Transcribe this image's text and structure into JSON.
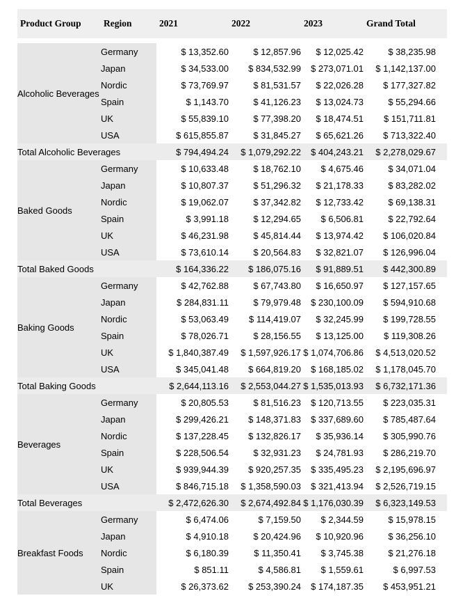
{
  "colors": {
    "page_bg": "#ffffff",
    "header_bg": "#efefef",
    "row_label_bg": "#e6e6e6",
    "total_row_bg": "#ececec",
    "text": "#000000"
  },
  "table": {
    "columns": [
      "Product Group",
      "Region",
      "2021",
      "2022",
      "2023",
      "Grand Total"
    ],
    "groups": [
      {
        "name": "Alcoholic Beverages",
        "rows": [
          {
            "region": "Germany",
            "values": [
              "$ 13,352.60",
              "$ 12,857.96",
              "$ 12,025.42",
              "$ 38,235.98"
            ]
          },
          {
            "region": "Japan",
            "values": [
              "$ 34,533.00",
              "$ 834,532.99",
              "$ 273,071.01",
              "$ 1,142,137.00"
            ]
          },
          {
            "region": "Nordic",
            "values": [
              "$ 73,769.97",
              "$ 81,531.57",
              "$ 22,026.28",
              "$ 177,327.82"
            ]
          },
          {
            "region": "Spain",
            "values": [
              "$ 1,143.70",
              "$ 41,126.23",
              "$ 13,024.73",
              "$ 55,294.66"
            ]
          },
          {
            "region": "UK",
            "values": [
              "$ 55,839.10",
              "$ 77,398.20",
              "$ 18,474.51",
              "$ 151,711.81"
            ]
          },
          {
            "region": "USA",
            "values": [
              "$ 615,855.87",
              "$ 31,845.27",
              "$ 65,621.26",
              "$ 713,322.40"
            ]
          }
        ],
        "total": {
          "label": "Total Alcoholic Beverages",
          "values": [
            "$ 794,494.24",
            "$ 1,079,292.22",
            "$ 404,243.21",
            "$ 2,278,029.67"
          ]
        }
      },
      {
        "name": "Baked Goods",
        "rows": [
          {
            "region": "Germany",
            "values": [
              "$ 10,633.48",
              "$ 18,762.10",
              "$ 4,675.46",
              "$ 34,071.04"
            ]
          },
          {
            "region": "Japan",
            "values": [
              "$ 10,807.37",
              "$ 51,296.32",
              "$ 21,178.33",
              "$ 83,282.02"
            ]
          },
          {
            "region": "Nordic",
            "values": [
              "$ 19,062.07",
              "$ 37,342.82",
              "$ 12,733.42",
              "$ 69,138.31"
            ]
          },
          {
            "region": "Spain",
            "values": [
              "$ 3,991.18",
              "$ 12,294.65",
              "$ 6,506.81",
              "$ 22,792.64"
            ]
          },
          {
            "region": "UK",
            "values": [
              "$ 46,231.98",
              "$ 45,814.44",
              "$ 13,974.42",
              "$ 106,020.84"
            ]
          },
          {
            "region": "USA",
            "values": [
              "$ 73,610.14",
              "$ 20,564.83",
              "$ 32,821.07",
              "$ 126,996.04"
            ]
          }
        ],
        "total": {
          "label": "Total Baked Goods",
          "values": [
            "$ 164,336.22",
            "$ 186,075.16",
            "$ 91,889.51",
            "$ 442,300.89"
          ]
        }
      },
      {
        "name": "Baking Goods",
        "rows": [
          {
            "region": "Germany",
            "values": [
              "$ 42,762.88",
              "$ 67,743.80",
              "$ 16,650.97",
              "$ 127,157.65"
            ]
          },
          {
            "region": "Japan",
            "values": [
              "$ 284,831.11",
              "$ 79,979.48",
              "$ 230,100.09",
              "$ 594,910.68"
            ]
          },
          {
            "region": "Nordic",
            "values": [
              "$ 53,063.49",
              "$ 114,419.07",
              "$ 32,245.99",
              "$ 199,728.55"
            ]
          },
          {
            "region": "Spain",
            "values": [
              "$ 78,026.71",
              "$ 28,156.55",
              "$ 13,125.00",
              "$ 119,308.26"
            ]
          },
          {
            "region": "UK",
            "values": [
              "$ 1,840,387.49",
              "$ 1,597,926.17",
              "$ 1,074,706.86",
              "$ 4,513,020.52"
            ]
          },
          {
            "region": "USA",
            "values": [
              "$ 345,041.48",
              "$ 664,819.20",
              "$ 168,185.02",
              "$ 1,178,045.70"
            ]
          }
        ],
        "total": {
          "label": "Total Baking Goods",
          "values": [
            "$ 2,644,113.16",
            "$ 2,553,044.27",
            "$ 1,535,013.93",
            "$ 6,732,171.36"
          ]
        }
      },
      {
        "name": "Beverages",
        "rows": [
          {
            "region": "Germany",
            "values": [
              "$ 20,805.53",
              "$ 81,516.23",
              "$ 120,713.55",
              "$ 223,035.31"
            ]
          },
          {
            "region": "Japan",
            "values": [
              "$ 299,426.21",
              "$ 148,371.83",
              "$ 337,689.60",
              "$ 785,487.64"
            ]
          },
          {
            "region": "Nordic",
            "values": [
              "$ 137,228.45",
              "$ 132,826.17",
              "$ 35,936.14",
              "$ 305,990.76"
            ]
          },
          {
            "region": "Spain",
            "values": [
              "$ 228,506.54",
              "$ 32,931.23",
              "$ 24,781.93",
              "$ 286,219.70"
            ]
          },
          {
            "region": "UK",
            "values": [
              "$ 939,944.39",
              "$ 920,257.35",
              "$ 335,495.23",
              "$ 2,195,696.97"
            ]
          },
          {
            "region": "USA",
            "values": [
              "$ 846,715.18",
              "$ 1,358,590.03",
              "$ 321,413.94",
              "$ 2,526,719.15"
            ]
          }
        ],
        "total": {
          "label": "Total Beverages",
          "values": [
            "$ 2,472,626.30",
            "$ 2,674,492.84",
            "$ 1,176,030.39",
            "$ 6,323,149.53"
          ]
        }
      },
      {
        "name": "Breakfast Foods",
        "rows": [
          {
            "region": "Germany",
            "values": [
              "$ 6,474.06",
              "$ 7,159.50",
              "$ 2,344.59",
              "$ 15,978.15"
            ]
          },
          {
            "region": "Japan",
            "values": [
              "$ 4,910.18",
              "$ 20,424.96",
              "$ 10,920.96",
              "$ 36,256.10"
            ]
          },
          {
            "region": "Nordic",
            "values": [
              "$ 6,180.39",
              "$ 11,350.41",
              "$ 3,745.38",
              "$ 21,276.18"
            ]
          },
          {
            "region": "Spain",
            "values": [
              "$ 851.11",
              "$ 4,586.81",
              "$ 1,559.61",
              "$ 6,997.53"
            ]
          },
          {
            "region": "UK",
            "values": [
              "$ 26,373.62",
              "$ 253,390.24",
              "$ 174,187.35",
              "$ 453,951.21"
            ]
          }
        ],
        "total": null
      }
    ]
  }
}
